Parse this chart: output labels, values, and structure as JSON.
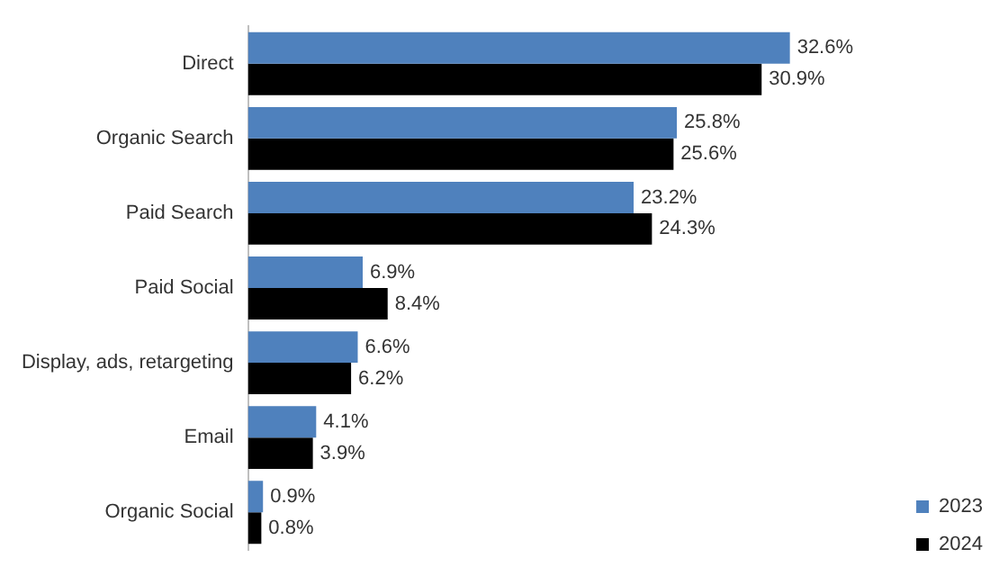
{
  "chart_data": {
    "type": "bar",
    "orientation": "horizontal",
    "categories": [
      "Direct",
      "Organic Search",
      "Paid Search",
      "Paid Social",
      "Display, ads, retargeting",
      "Email",
      "Organic Social"
    ],
    "series": [
      {
        "name": "2023",
        "color": "#4f81bd",
        "values": [
          32.6,
          25.8,
          23.2,
          6.9,
          6.6,
          4.1,
          0.9
        ],
        "value_labels": [
          "32.6%",
          "25.8%",
          "23.2%",
          "6.9%",
          "6.6%",
          "4.1%",
          "0.9%"
        ]
      },
      {
        "name": "2024",
        "color": "#000000",
        "values": [
          30.9,
          25.6,
          24.3,
          8.4,
          6.2,
          3.9,
          0.8
        ],
        "value_labels": [
          "30.9%",
          "25.6%",
          "24.3%",
          "8.4%",
          "6.2%",
          "3.9%",
          "0.8%"
        ]
      }
    ],
    "legend": "bottom right"
  }
}
